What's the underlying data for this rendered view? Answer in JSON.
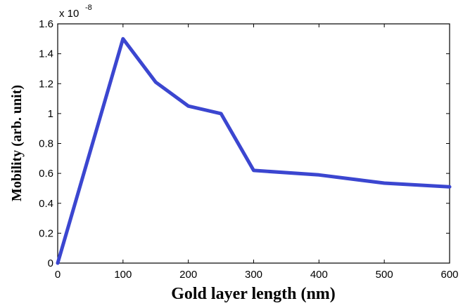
{
  "chart_data": {
    "type": "line",
    "title": "",
    "xlabel": "Gold layer length (nm)",
    "ylabel": "Mobility (arb. unit)",
    "y_multiplier_base": "x 10",
    "y_multiplier_exponent": "-8",
    "xlim": [
      0,
      600
    ],
    "ylim": [
      0,
      1.6
    ],
    "xticks": [
      "0",
      "100",
      "200",
      "300",
      "400",
      "500",
      "600"
    ],
    "yticks": [
      "0",
      "0.2",
      "0.4",
      "0.6",
      "0.8",
      "1",
      "1.2",
      "1.4",
      "1.6"
    ],
    "grid": false,
    "series": [
      {
        "color": "#3b46d0",
        "x": [
          0,
          100,
          150,
          200,
          250,
          300,
          400,
          500,
          600
        ],
        "y": [
          0,
          1.5,
          1.21,
          1.05,
          1.0,
          0.62,
          0.59,
          0.535,
          0.51
        ]
      }
    ]
  }
}
